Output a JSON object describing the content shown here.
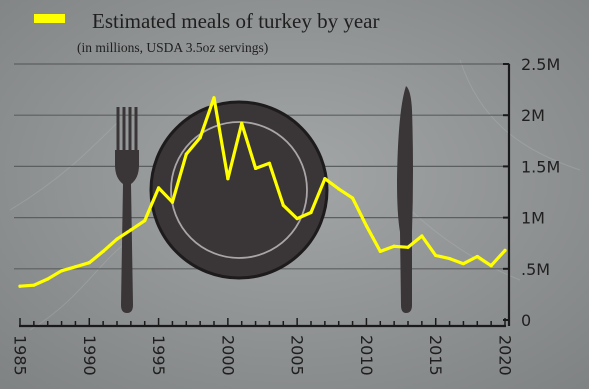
{
  "chart_data": {
    "type": "line",
    "title": "",
    "legend": {
      "label": "Estimated meals of turkey by year",
      "sublabel": "(in millions, USDA 3.5oz servings)",
      "placement": "top-left"
    },
    "xlabel": "",
    "ylabel": "",
    "xlim": [
      1985,
      2020
    ],
    "ylim": [
      0,
      2.5
    ],
    "x_ticks": [
      1985,
      1990,
      1995,
      2000,
      2005,
      2010,
      2015,
      2020
    ],
    "x_tick_labels": [
      "1985",
      "1990",
      "1995",
      "2000",
      "2005",
      "2010",
      "2015",
      "2020"
    ],
    "y_ticks": [
      0,
      0.5,
      1,
      1.5,
      2,
      2.5
    ],
    "y_tick_labels": [
      "0",
      ".5M",
      "1M",
      "1.5M",
      "2M",
      "2.5M"
    ],
    "grid": true,
    "series": [
      {
        "name": "Estimated meals of turkey by year",
        "color": "#ffff00",
        "x": [
          1985,
          1986,
          1987,
          1988,
          1989,
          1990,
          1991,
          1992,
          1993,
          1994,
          1995,
          1996,
          1997,
          1998,
          1999,
          2000,
          2001,
          2002,
          2003,
          2004,
          2005,
          2006,
          2007,
          2008,
          2009,
          2010,
          2011,
          2012,
          2013,
          2014,
          2015,
          2016,
          2017,
          2018,
          2019,
          2020
        ],
        "y": [
          0.33,
          0.34,
          0.4,
          0.48,
          0.52,
          0.56,
          0.67,
          0.79,
          0.88,
          0.97,
          1.29,
          1.15,
          1.62,
          1.78,
          2.17,
          1.38,
          1.92,
          1.48,
          1.53,
          1.12,
          0.99,
          1.05,
          1.38,
          1.28,
          1.19,
          0.92,
          0.67,
          0.72,
          0.71,
          0.82,
          0.63,
          0.6,
          0.55,
          0.62,
          0.53,
          0.68
        ]
      }
    ]
  },
  "colors": {
    "background": "#8e9192",
    "grid": "#5c5f60",
    "line": "#ffff00",
    "silhouette": "#3a3537",
    "plate_ring": "#1e1b1c",
    "plate_inner_line": "#aaa6a7",
    "axis": "#1a1a1a"
  },
  "decorations": [
    "fork-icon",
    "plate-icon",
    "knife-icon"
  ]
}
